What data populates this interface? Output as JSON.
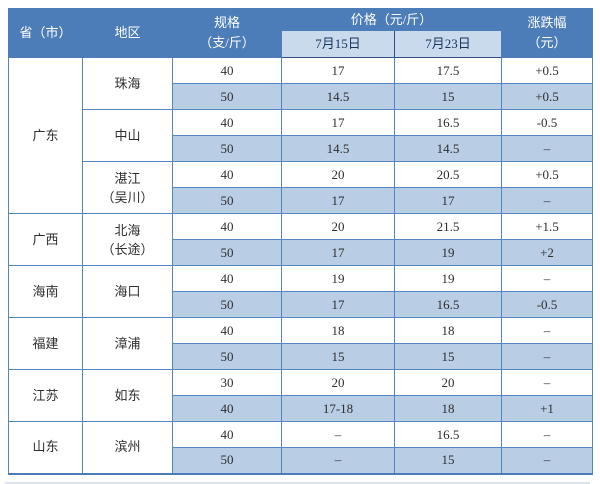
{
  "table": {
    "headers": {
      "province": "省（市）",
      "region": "地区",
      "spec_line1": "规格",
      "spec_line2": "（支/斤）",
      "price_group": "价格（元/斤）",
      "date1": "7月15日",
      "date2": "7月23日",
      "change_line1": "涨跌幅",
      "change_line2": "（元）"
    }
  },
  "colors": {
    "header_bg": "#4c7db8",
    "header_text": "#ffffff",
    "subheader_bg": "#c9daed",
    "subheader_text": "#17365d",
    "subheader_border": "#31537f",
    "alt_row_bg": "#b9cde5",
    "grid_border": "#5585bd",
    "body_text": "#2e2e2e"
  },
  "chart_data": {
    "type": "table",
    "title": "",
    "columns": [
      "省（市）",
      "地区",
      "规格（支/斤）",
      "价格（元/斤）7月15日",
      "价格（元/斤）7月23日",
      "涨跌幅（元）"
    ],
    "rows": [
      [
        "广东",
        "珠海",
        "40",
        "17",
        "17.5",
        "+0.5"
      ],
      [
        "广东",
        "珠海",
        "50",
        "14.5",
        "15",
        "+0.5"
      ],
      [
        "广东",
        "中山",
        "40",
        "17",
        "16.5",
        "-0.5"
      ],
      [
        "广东",
        "中山",
        "50",
        "14.5",
        "14.5",
        "–"
      ],
      [
        "广东",
        "湛江（吴川）",
        "40",
        "20",
        "20.5",
        "+0.5"
      ],
      [
        "广东",
        "湛江（吴川）",
        "50",
        "17",
        "17",
        "–"
      ],
      [
        "广西",
        "北海（长途）",
        "40",
        "20",
        "21.5",
        "+1.5"
      ],
      [
        "广西",
        "北海（长途）",
        "50",
        "17",
        "19",
        "+2"
      ],
      [
        "海南",
        "海口",
        "40",
        "19",
        "19",
        "–"
      ],
      [
        "海南",
        "海口",
        "50",
        "17",
        "16.5",
        "-0.5"
      ],
      [
        "福建",
        "漳浦",
        "40",
        "18",
        "18",
        "–"
      ],
      [
        "福建",
        "漳浦",
        "50",
        "15",
        "15",
        "–"
      ],
      [
        "江苏",
        "如东",
        "30",
        "20",
        "20",
        "–"
      ],
      [
        "江苏",
        "如东",
        "40",
        "17-18",
        "18",
        "+1"
      ],
      [
        "山东",
        "滨州",
        "40",
        "–",
        "16.5",
        "–"
      ],
      [
        "山东",
        "滨州",
        "50",
        "–",
        "15",
        "–"
      ]
    ]
  }
}
